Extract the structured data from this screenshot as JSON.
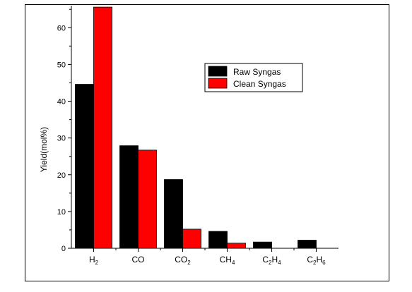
{
  "chart_data": {
    "type": "bar",
    "categories": [
      {
        "base": "H",
        "sub": "2"
      },
      {
        "base": "CO",
        "sub": ""
      },
      {
        "base": "CO",
        "sub": "2"
      },
      {
        "base": "CH",
        "sub": "4"
      },
      {
        "base": "C",
        "sub": "2",
        "base2": "H",
        "sub2": "4"
      },
      {
        "base": "C",
        "sub": "2",
        "base2": "H",
        "sub2": "6"
      }
    ],
    "series": [
      {
        "name": "Raw Syngas",
        "color": "#000000",
        "values": [
          44.6,
          27.9,
          18.7,
          4.6,
          1.7,
          2.2
        ]
      },
      {
        "name": "Clean Syngas",
        "color": "#ff0000",
        "values": [
          65.6,
          26.7,
          5.2,
          1.4,
          0,
          0
        ]
      }
    ],
    "xlabel": "",
    "ylabel": "Yield(mol%)",
    "ylim": [
      0,
      66
    ],
    "yticks": [
      0,
      10,
      20,
      30,
      40,
      50,
      60
    ],
    "legend_position": "top-right",
    "grid": false
  }
}
